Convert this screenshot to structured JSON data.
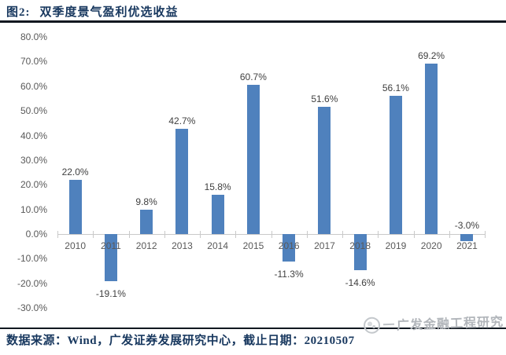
{
  "header": {
    "figure_label": "图2:",
    "figure_title": "双季度景气盈利优选收益"
  },
  "chart_data": {
    "type": "bar",
    "title": "双季度景气盈利优选收益",
    "categories": [
      "2010",
      "2011",
      "2012",
      "2013",
      "2014",
      "2015",
      "2016",
      "2017",
      "2018",
      "2019",
      "2020",
      "2021"
    ],
    "values": [
      22.0,
      -19.1,
      9.8,
      42.7,
      15.8,
      60.7,
      -11.3,
      51.6,
      -14.6,
      56.1,
      69.2,
      -3.0
    ],
    "data_labels": [
      "22.0%",
      "-19.1%",
      "9.8%",
      "42.7%",
      "15.8%",
      "60.7%",
      "-11.3%",
      "51.6%",
      "-14.6%",
      "56.1%",
      "69.2%",
      "-3.0%"
    ],
    "xlabel": "",
    "ylabel": "",
    "ylim": [
      -30,
      80
    ],
    "ytick_step": 10,
    "ytick_labels": [
      "80.0%",
      "70.0%",
      "60.0%",
      "50.0%",
      "40.0%",
      "30.0%",
      "20.0%",
      "10.0%",
      "0.0%",
      "-10.0%",
      "-20.0%",
      "-30.0%"
    ],
    "grid": false,
    "legend": "none",
    "bar_color": "#4F81BD",
    "axis_label_color": "#595959",
    "data_label_color": "#404040",
    "axis_line_color": "#C9C9C9"
  },
  "footer": {
    "source_text": "数据来源：Wind，广发证券发展研究中心，截止日期：20210507"
  },
  "watermark": {
    "text": "广发金融工程研究"
  },
  "colors": {
    "accent_navy": "#17375E",
    "bar_blue": "#4F81BD",
    "rule_dark": "#101820",
    "watermark_gray": "#B2B6BB"
  }
}
